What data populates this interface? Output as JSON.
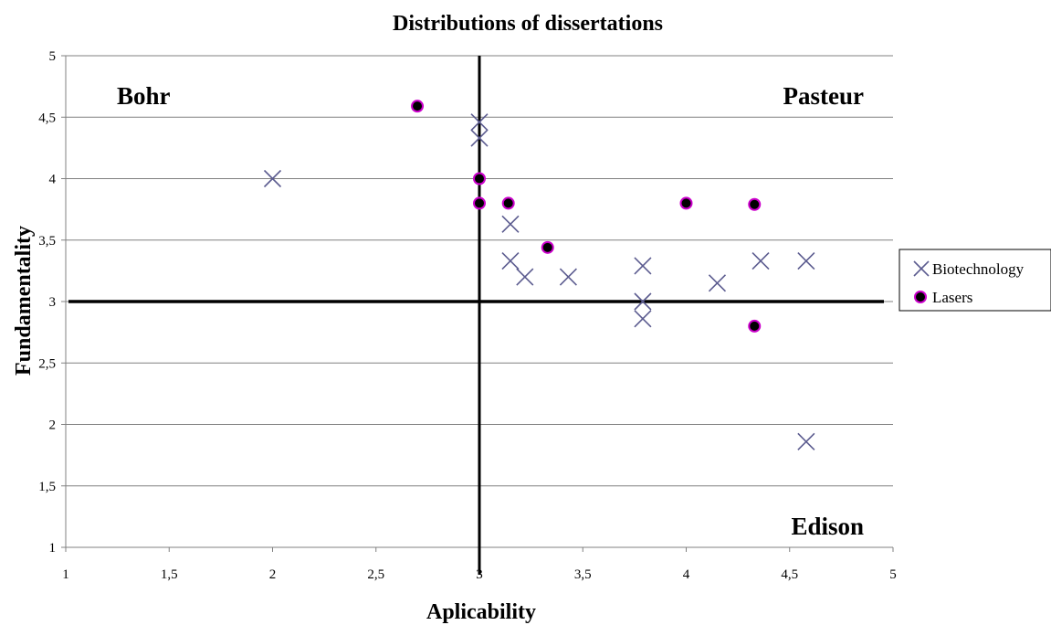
{
  "chart_data": {
    "type": "scatter",
    "title": "Distributions of dissertations",
    "xlabel": "Aplicability",
    "ylabel": "Fundamentality",
    "xlim": [
      1,
      5
    ],
    "ylim": [
      1,
      5
    ],
    "x_ticks": [
      "1",
      "1,5",
      "2",
      "2,5",
      "3",
      "3,5",
      "4",
      "4,5",
      "5"
    ],
    "y_ticks": [
      "1",
      "1,5",
      "2",
      "2,5",
      "3",
      "3,5",
      "4",
      "4,5",
      "5"
    ],
    "x_tick_values": [
      1,
      1.5,
      2,
      2.5,
      3,
      3.5,
      4,
      4.5,
      5
    ],
    "y_tick_values": [
      1,
      1.5,
      2,
      2.5,
      3,
      3.5,
      4,
      4.5,
      5
    ],
    "horizontal_gridlines": true,
    "vertical_gridlines": false,
    "reference_lines": {
      "x": 3,
      "y": 3
    },
    "legend_position": "right",
    "quadrant_labels": {
      "top_left": "Bohr",
      "top_right": "Pasteur",
      "bottom_right": "Edison"
    },
    "series": [
      {
        "name": "Biotechnology",
        "marker": "x",
        "color": "#5b5b8f",
        "x": [
          2.0,
          3.0,
          3.0,
          3.15,
          3.15,
          3.22,
          3.43,
          3.79,
          3.79,
          3.79,
          4.15,
          4.36,
          4.58,
          4.58
        ],
        "y": [
          4.0,
          4.46,
          4.33,
          3.63,
          3.33,
          3.2,
          3.2,
          3.29,
          3.0,
          2.86,
          3.15,
          3.33,
          3.33,
          1.86
        ]
      },
      {
        "name": "Lasers",
        "marker": "circle",
        "color": "#000000",
        "edge_color": "#cc00cc",
        "x": [
          2.7,
          3.0,
          3.0,
          3.14,
          3.33,
          4.0,
          4.33,
          4.33
        ],
        "y": [
          4.59,
          4.0,
          3.8,
          3.8,
          3.44,
          3.8,
          3.79,
          2.8
        ]
      }
    ]
  }
}
